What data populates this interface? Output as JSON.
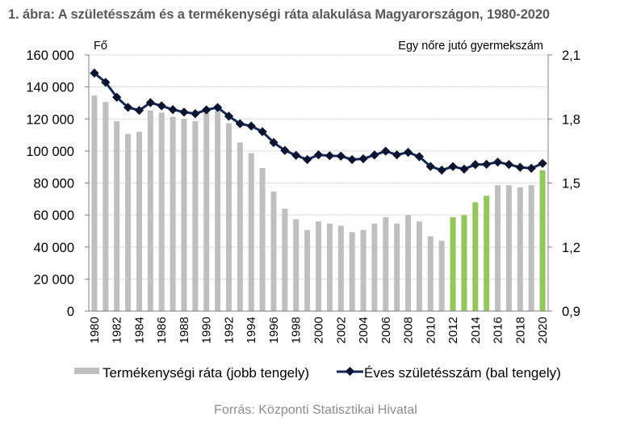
{
  "title": "1. ábra: A születésszám és a termékenységi ráta alakulása Magyarországon, 1980-2020",
  "source": "Forrás: Központi Statisztikai Hivatal",
  "colors": {
    "bar_default": "#bfbfbf",
    "bar_highlight": "#92c85a",
    "line": "#13285a",
    "marker": "#0b1430",
    "grid": "#d0d0d0",
    "title": "#595959",
    "source": "#8c8c8c"
  },
  "chart_data": {
    "type": "bar+line",
    "title": "1. ábra: A születésszám és a termékenységi ráta alakulása Magyarországon, 1980-2020",
    "left_axis": {
      "title": "Fő",
      "range": [
        0,
        160000
      ],
      "ticks": [
        0,
        20000,
        40000,
        60000,
        80000,
        100000,
        120000,
        140000,
        160000
      ],
      "tick_labels": [
        "0",
        "20 000",
        "40 000",
        "60 000",
        "80 000",
        "100 000",
        "120 000",
        "140 000",
        "160 000"
      ]
    },
    "right_axis": {
      "title": "Egy nőre jutó gyermekszám",
      "range": [
        0.9,
        2.1
      ],
      "ticks": [
        0.9,
        1.2,
        1.5,
        1.8,
        2.1
      ],
      "tick_labels": [
        "0,9",
        "1,2",
        "1,5",
        "1,8",
        "2,1"
      ]
    },
    "grid": true,
    "x": [
      1980,
      1981,
      1982,
      1983,
      1984,
      1985,
      1986,
      1987,
      1988,
      1989,
      1990,
      1991,
      1992,
      1993,
      1994,
      1995,
      1996,
      1997,
      1998,
      1999,
      2000,
      2001,
      2002,
      2003,
      2004,
      2005,
      2006,
      2007,
      2008,
      2009,
      2010,
      2011,
      2012,
      2013,
      2014,
      2015,
      2016,
      2017,
      2018,
      2019,
      2020
    ],
    "x_tick_labels": [
      "1980",
      "1982",
      "1984",
      "1986",
      "1988",
      "1990",
      "1992",
      "1994",
      "1996",
      "1998",
      "2000",
      "2002",
      "2004",
      "2006",
      "2008",
      "2010",
      "2012",
      "2014",
      "2016",
      "2018",
      "2020"
    ],
    "series": [
      {
        "name": "Termékenységi ráta (jobb tengely)",
        "type": "bar",
        "axis": "right",
        "values": [
          1.91,
          1.88,
          1.79,
          1.73,
          1.74,
          1.84,
          1.83,
          1.81,
          1.8,
          1.79,
          1.83,
          1.84,
          1.78,
          1.69,
          1.64,
          1.57,
          1.46,
          1.38,
          1.33,
          1.28,
          1.32,
          1.31,
          1.3,
          1.27,
          1.28,
          1.31,
          1.34,
          1.31,
          1.35,
          1.32,
          1.25,
          1.23,
          1.34,
          1.35,
          1.41,
          1.44,
          1.49,
          1.49,
          1.48,
          1.49,
          1.56
        ],
        "highlighted_years": [
          2012,
          2013,
          2014,
          2015,
          2020
        ]
      },
      {
        "name": "Éves születésszám (bal tengely)",
        "type": "line",
        "axis": "left",
        "values": [
          148673,
          142890,
          133559,
          127258,
          125359,
          130200,
          128204,
          125840,
          124296,
          123304,
          125679,
          127207,
          121724,
          117033,
          115598,
          112054,
          105272,
          100350,
          97301,
          94645,
          97597,
          97047,
          96804,
          94647,
          95137,
          97496,
          99871,
          97613,
          99149,
          96442,
          90335,
          88049,
          90269,
          88689,
          91510,
          91690,
          93063,
          91577,
          89807,
          89193,
          92233
        ]
      }
    ],
    "legend": {
      "position": "bottom",
      "items": [
        "Termékenységi ráta (jobb tengely)",
        "Éves születésszám (bal tengely)"
      ]
    }
  }
}
